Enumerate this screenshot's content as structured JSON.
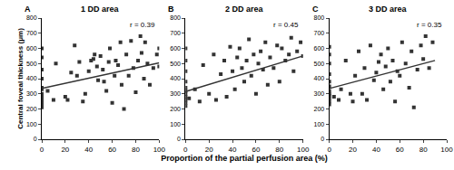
{
  "chart_data": [
    {
      "type": "scatter",
      "panel": "A",
      "title": "1 DD area",
      "annotation": "r = 0.39",
      "y_label": "Central foveal thickness (μm)",
      "x": [
        0,
        0,
        0,
        0,
        0,
        0,
        0,
        0,
        0,
        0,
        0,
        0,
        5,
        10,
        12,
        20,
        22,
        25,
        28,
        30,
        32,
        35,
        37,
        40,
        42,
        44,
        45,
        47,
        48,
        50,
        52,
        53,
        55,
        57,
        58,
        60,
        62,
        63,
        65,
        67,
        68,
        70,
        72,
        74,
        76,
        78,
        80,
        82,
        84,
        85,
        87,
        88,
        90,
        92,
        95,
        98,
        100,
        100
      ],
      "y": [
        210,
        230,
        250,
        260,
        280,
        300,
        330,
        340,
        400,
        460,
        540,
        600,
        320,
        260,
        500,
        280,
        260,
        440,
        620,
        420,
        510,
        250,
        300,
        450,
        520,
        530,
        560,
        480,
        390,
        550,
        460,
        380,
        320,
        510,
        600,
        240,
        420,
        520,
        490,
        640,
        360,
        200,
        560,
        420,
        650,
        470,
        310,
        520,
        680,
        570,
        400,
        640,
        500,
        360,
        470,
        560,
        480,
        600
      ],
      "trend": {
        "x": [
          0,
          100
        ],
        "y": [
          335,
          505
        ]
      },
      "xlim": [
        0,
        100
      ],
      "ylim": [
        0,
        800
      ],
      "xticks": [
        0,
        20,
        40,
        60,
        80,
        100
      ],
      "yticks": [
        0,
        100,
        200,
        300,
        400,
        500,
        600,
        700,
        800
      ],
      "color": "#333333",
      "marker": "square",
      "grid": false
    },
    {
      "type": "scatter",
      "panel": "B",
      "title": "2 DD area",
      "annotation": "r = 0.45",
      "x_label": "Proportion of the partial perfusion area (%)",
      "x": [
        0,
        0,
        0,
        0,
        0,
        0,
        0,
        0,
        0,
        0,
        0,
        3,
        8,
        12,
        15,
        20,
        24,
        26,
        30,
        33,
        35,
        38,
        40,
        42,
        44,
        46,
        48,
        50,
        52,
        54,
        56,
        58,
        60,
        62,
        64,
        66,
        68,
        70,
        72,
        75,
        78,
        80,
        82,
        85,
        88,
        90,
        92,
        95,
        98,
        100
      ],
      "y": [
        220,
        240,
        260,
        280,
        300,
        320,
        340,
        380,
        450,
        520,
        600,
        270,
        330,
        250,
        490,
        300,
        560,
        260,
        430,
        520,
        280,
        610,
        450,
        330,
        540,
        600,
        470,
        380,
        520,
        660,
        420,
        560,
        300,
        500,
        580,
        460,
        640,
        360,
        540,
        470,
        620,
        380,
        600,
        520,
        560,
        670,
        450,
        580,
        640,
        550
      ],
      "trend": {
        "x": [
          0,
          100
        ],
        "y": [
          315,
          550
        ]
      },
      "xlim": [
        0,
        100
      ],
      "ylim": [
        0,
        800
      ],
      "xticks": [
        0,
        20,
        40,
        60,
        80,
        100
      ],
      "yticks": [
        0,
        100,
        200,
        300,
        400,
        500,
        600,
        700,
        800
      ],
      "color": "#333333",
      "marker": "square",
      "grid": false
    },
    {
      "type": "scatter",
      "panel": "C",
      "title": "3 DD area",
      "annotation": "r = 0.35",
      "x": [
        0,
        0,
        0,
        0,
        0,
        0,
        0,
        0,
        0,
        0,
        0,
        0,
        4,
        8,
        10,
        14,
        18,
        20,
        22,
        25,
        28,
        30,
        32,
        35,
        38,
        40,
        42,
        44,
        46,
        48,
        50,
        52,
        54,
        56,
        58,
        60,
        62,
        65,
        68,
        70,
        72,
        75,
        78,
        80,
        82,
        85,
        88
      ],
      "y": [
        230,
        250,
        270,
        290,
        300,
        320,
        350,
        380,
        430,
        500,
        560,
        610,
        280,
        260,
        330,
        520,
        300,
        250,
        420,
        580,
        300,
        470,
        260,
        620,
        390,
        440,
        510,
        560,
        330,
        480,
        600,
        380,
        520,
        250,
        450,
        420,
        640,
        500,
        340,
        580,
        210,
        460,
        620,
        530,
        680,
        470,
        640
      ],
      "trend": {
        "x": [
          0,
          90
        ],
        "y": [
          335,
          520
        ]
      },
      "xlim": [
        0,
        100
      ],
      "ylim": [
        0,
        800
      ],
      "xticks": [
        0,
        20,
        40,
        60,
        80,
        100
      ],
      "yticks": [
        0,
        100,
        200,
        300,
        400,
        500,
        600,
        700,
        800
      ],
      "color": "#333333",
      "marker": "square",
      "grid": false
    }
  ]
}
